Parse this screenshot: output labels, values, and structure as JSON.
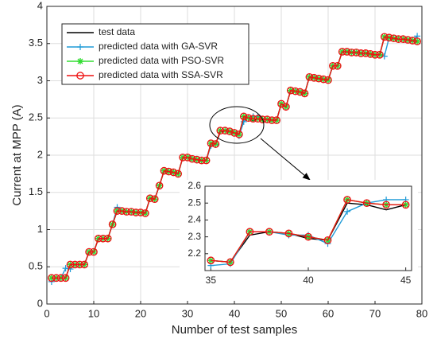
{
  "chart_data": {
    "type": "line",
    "xlabel": "Number of test samples",
    "ylabel": "Current at MPP (A)",
    "x": [
      1,
      2,
      3,
      4,
      5,
      6,
      7,
      8,
      9,
      10,
      11,
      12,
      13,
      14,
      15,
      16,
      17,
      18,
      19,
      20,
      21,
      22,
      23,
      24,
      25,
      26,
      27,
      28,
      29,
      30,
      31,
      32,
      33,
      34,
      35,
      36,
      37,
      38,
      39,
      40,
      41,
      42,
      43,
      44,
      45,
      46,
      47,
      48,
      49,
      50,
      51,
      52,
      53,
      54,
      55,
      56,
      57,
      58,
      59,
      60,
      61,
      62,
      63,
      64,
      65,
      66,
      67,
      68,
      69,
      70,
      71,
      72,
      73,
      74,
      75,
      76,
      77,
      78,
      79
    ],
    "series": [
      {
        "name": "test data",
        "color": "#000000",
        "marker": "none",
        "values": [
          0.35,
          0.35,
          0.35,
          0.35,
          0.53,
          0.53,
          0.53,
          0.53,
          0.7,
          0.7,
          0.88,
          0.88,
          0.88,
          1.07,
          1.25,
          1.25,
          1.24,
          1.24,
          1.23,
          1.23,
          1.22,
          1.42,
          1.41,
          1.59,
          1.79,
          1.78,
          1.77,
          1.75,
          1.97,
          1.97,
          1.95,
          1.94,
          1.93,
          1.93,
          2.16,
          2.15,
          2.31,
          2.33,
          2.32,
          2.29,
          2.28,
          2.5,
          2.49,
          2.46,
          2.49,
          2.48,
          2.48,
          2.47,
          2.47,
          2.69,
          2.65,
          2.87,
          2.86,
          2.85,
          2.83,
          3.05,
          3.04,
          3.03,
          3.02,
          3.01,
          3.2,
          3.2,
          3.39,
          3.39,
          3.38,
          3.38,
          3.37,
          3.37,
          3.36,
          3.35,
          3.35,
          3.59,
          3.58,
          3.57,
          3.56,
          3.56,
          3.55,
          3.54,
          3.53
        ]
      },
      {
        "name": "predicted data with GA-SVR",
        "color": "#1f9bd7",
        "marker": "plus",
        "values": [
          0.3,
          0.35,
          0.35,
          0.48,
          0.47,
          0.53,
          0.53,
          0.53,
          0.7,
          0.7,
          0.88,
          0.88,
          0.88,
          1.07,
          1.3,
          1.25,
          1.24,
          1.24,
          1.23,
          1.23,
          1.22,
          1.42,
          1.41,
          1.59,
          1.79,
          1.78,
          1.77,
          1.75,
          1.97,
          1.97,
          1.95,
          1.94,
          1.93,
          1.93,
          2.13,
          2.14,
          2.33,
          2.33,
          2.31,
          2.31,
          2.26,
          2.45,
          2.5,
          2.52,
          2.52,
          2.48,
          2.48,
          2.47,
          2.47,
          2.69,
          2.65,
          2.87,
          2.86,
          2.85,
          2.83,
          3.05,
          3.04,
          3.03,
          3.02,
          3.01,
          3.2,
          3.2,
          3.39,
          3.39,
          3.38,
          3.38,
          3.37,
          3.37,
          3.36,
          3.35,
          3.35,
          3.33,
          3.58,
          3.57,
          3.56,
          3.56,
          3.55,
          3.54,
          3.6
        ]
      },
      {
        "name": "predicted data with PSO-SVR",
        "color": "#33dd33",
        "marker": "star",
        "values": [
          0.35,
          0.35,
          0.35,
          0.35,
          0.53,
          0.53,
          0.53,
          0.53,
          0.7,
          0.7,
          0.88,
          0.88,
          0.88,
          1.07,
          1.25,
          1.25,
          1.24,
          1.24,
          1.23,
          1.23,
          1.22,
          1.42,
          1.41,
          1.59,
          1.79,
          1.78,
          1.77,
          1.75,
          1.97,
          1.97,
          1.95,
          1.94,
          1.93,
          1.93,
          2.16,
          2.15,
          2.33,
          2.33,
          2.32,
          2.3,
          2.28,
          2.52,
          2.5,
          2.49,
          2.49,
          2.48,
          2.48,
          2.47,
          2.47,
          2.69,
          2.65,
          2.87,
          2.86,
          2.85,
          2.83,
          3.05,
          3.04,
          3.03,
          3.02,
          3.01,
          3.2,
          3.2,
          3.39,
          3.39,
          3.38,
          3.38,
          3.37,
          3.37,
          3.36,
          3.35,
          3.35,
          3.59,
          3.58,
          3.57,
          3.56,
          3.56,
          3.55,
          3.54,
          3.53
        ]
      },
      {
        "name": "predicted data with SSA-SVR",
        "color": "#ee1111",
        "marker": "circle",
        "values": [
          0.35,
          0.35,
          0.35,
          0.35,
          0.53,
          0.53,
          0.53,
          0.53,
          0.7,
          0.7,
          0.88,
          0.88,
          0.88,
          1.07,
          1.25,
          1.25,
          1.24,
          1.24,
          1.23,
          1.23,
          1.22,
          1.42,
          1.41,
          1.59,
          1.79,
          1.78,
          1.77,
          1.75,
          1.97,
          1.97,
          1.95,
          1.94,
          1.93,
          1.93,
          2.16,
          2.15,
          2.33,
          2.33,
          2.32,
          2.3,
          2.28,
          2.52,
          2.5,
          2.49,
          2.49,
          2.48,
          2.48,
          2.47,
          2.47,
          2.69,
          2.65,
          2.87,
          2.86,
          2.85,
          2.83,
          3.05,
          3.04,
          3.03,
          3.02,
          3.01,
          3.2,
          3.2,
          3.39,
          3.39,
          3.38,
          3.38,
          3.37,
          3.37,
          3.36,
          3.35,
          3.35,
          3.59,
          3.58,
          3.57,
          3.56,
          3.56,
          3.55,
          3.54,
          3.53
        ]
      }
    ],
    "xlim": [
      0,
      80
    ],
    "xticks": [
      0,
      10,
      20,
      30,
      40,
      50,
      60,
      70,
      80
    ],
    "ylim": [
      0,
      4
    ],
    "yticks": [
      0,
      0.5,
      1,
      1.5,
      2,
      2.5,
      3,
      3.5,
      4
    ],
    "grid": true,
    "legend": "upper left",
    "inset": {
      "xlim": [
        34.7,
        45.3
      ],
      "xticks": [
        35,
        40,
        45
      ],
      "ylim": [
        2.1,
        2.6
      ],
      "yticks": [
        2.2,
        2.3,
        2.4,
        2.5,
        2.6
      ],
      "grid": false
    }
  }
}
